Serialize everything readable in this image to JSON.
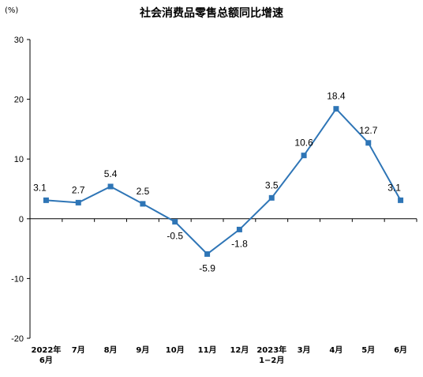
{
  "chart_data": {
    "type": "line",
    "title": "社会消费品零售总额同比增速",
    "unit": "(%)",
    "categories": [
      [
        "2022年",
        "6月"
      ],
      [
        "7月"
      ],
      [
        "8月"
      ],
      [
        "9月"
      ],
      [
        "10月"
      ],
      [
        "11月"
      ],
      [
        "12月"
      ],
      [
        "2023年",
        "1−2月"
      ],
      [
        "3月"
      ],
      [
        "4月"
      ],
      [
        "5月"
      ],
      [
        "6月"
      ]
    ],
    "values": [
      3.1,
      2.7,
      5.4,
      2.5,
      -0.5,
      -5.9,
      -1.8,
      3.5,
      10.6,
      18.4,
      12.7,
      3.1
    ],
    "value_labels": [
      "3.1",
      "2.7",
      "5.4",
      "2.5",
      "-0.5",
      "-5.9",
      "-1.8",
      "3.5",
      "10.6",
      "18.4",
      "12.7",
      "3.1"
    ],
    "label_position": [
      "above",
      "above",
      "above",
      "above",
      "below",
      "below",
      "below",
      "above",
      "above",
      "above",
      "above",
      "above"
    ],
    "ylim": [
      -20,
      30
    ],
    "yticks": [
      "30",
      "20",
      "10",
      "0",
      "-10",
      "-20"
    ],
    "line_color": "#2E75B6",
    "axis_color": "#000000",
    "grid": false,
    "legend": "none"
  }
}
